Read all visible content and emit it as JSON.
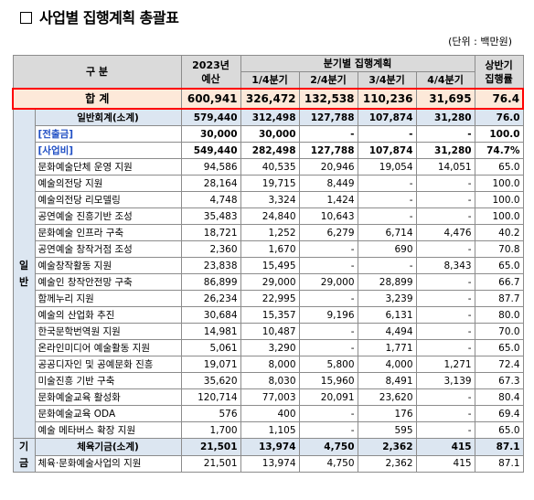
{
  "title": "사업별 집행계획 총괄표",
  "unit": "(단위 : 백만원)",
  "header": {
    "division": "구 분",
    "budget_line1": "2023년",
    "budget_line2": "예산",
    "quarter_group": "분기별 집행계획",
    "q1": "1/4분기",
    "q2": "2/4분기",
    "q3": "3/4분기",
    "q4": "4/4분기",
    "rate_line1": "상반기",
    "rate_line2": "집행률"
  },
  "total": {
    "label": "합    계",
    "values": [
      "600,941",
      "326,472",
      "132,538",
      "110,236",
      "31,695",
      "76.4"
    ]
  },
  "general": {
    "side_label_1": "일",
    "side_label_2": "반",
    "subtotal": {
      "label": "일반회계(소계)",
      "values": [
        "579,440",
        "312,498",
        "127,788",
        "107,874",
        "31,280",
        "76.0"
      ]
    },
    "transfer": {
      "label": "[전출금]",
      "values": [
        "30,000",
        "30,000",
        "-",
        "-",
        "-",
        "100.0"
      ]
    },
    "business": {
      "label": "[사업비]",
      "values": [
        "549,440",
        "282,498",
        "127,788",
        "107,874",
        "31,280",
        "74.7%"
      ]
    },
    "rows": [
      {
        "label": "문화예술단체 운영 지원",
        "values": [
          "94,586",
          "40,535",
          "20,946",
          "19,054",
          "14,051",
          "65.0"
        ]
      },
      {
        "label": "예술의전당 지원",
        "values": [
          "28,164",
          "19,715",
          "8,449",
          "-",
          "-",
          "100.0"
        ]
      },
      {
        "label": "예술의전당 리모델링",
        "values": [
          "4,748",
          "3,324",
          "1,424",
          "-",
          "-",
          "100.0"
        ]
      },
      {
        "label": "공연예술 진흥기반 조성",
        "values": [
          "35,483",
          "24,840",
          "10,643",
          "-",
          "-",
          "100.0"
        ]
      },
      {
        "label": "문화예술 인프라 구축",
        "values": [
          "18,721",
          "1,252",
          "6,279",
          "6,714",
          "4,476",
          "40.2"
        ]
      },
      {
        "label": "공연예술 창작거점 조성",
        "values": [
          "2,360",
          "1,670",
          "-",
          "690",
          "-",
          "70.8"
        ]
      },
      {
        "label": "예술창작활동 지원",
        "values": [
          "23,838",
          "15,495",
          "-",
          "-",
          "8,343",
          "65.0"
        ]
      },
      {
        "label": "예술인 창작안전망 구축",
        "values": [
          "86,899",
          "29,000",
          "29,000",
          "28,899",
          "-",
          "66.7"
        ]
      },
      {
        "label": "함께누리 지원",
        "values": [
          "26,234",
          "22,995",
          "-",
          "3,239",
          "-",
          "87.7"
        ]
      },
      {
        "label": "예술의 산업화 추진",
        "values": [
          "30,684",
          "15,357",
          "9,196",
          "6,131",
          "-",
          "80.0"
        ]
      },
      {
        "label": "한국문학번역원 지원",
        "values": [
          "14,981",
          "10,487",
          "-",
          "4,494",
          "-",
          "70.0"
        ]
      },
      {
        "label": "온라인미디어 예술활동 지원",
        "values": [
          "5,061",
          "3,290",
          "-",
          "1,771",
          "-",
          "65.0"
        ]
      },
      {
        "label": "공공디자인 및 공예문화 진흥",
        "values": [
          "19,071",
          "8,000",
          "5,800",
          "4,000",
          "1,271",
          "72.4"
        ]
      },
      {
        "label": "미술진흥 기반 구축",
        "values": [
          "35,620",
          "8,030",
          "15,960",
          "8,491",
          "3,139",
          "67.3"
        ]
      },
      {
        "label": "문화예술교육 활성화",
        "values": [
          "120,714",
          "77,003",
          "20,091",
          "23,620",
          "-",
          "80.4"
        ]
      },
      {
        "label": "문화예술교육 ODA",
        "values": [
          "576",
          "400",
          "-",
          "176",
          "-",
          "69.4"
        ]
      },
      {
        "label": "예술 메타버스 확장 지원",
        "values": [
          "1,700",
          "1,105",
          "-",
          "595",
          "-",
          "65.0"
        ]
      }
    ]
  },
  "fund": {
    "side_label_1": "기",
    "side_label_2": "금",
    "subtotal": {
      "label": "체육기금(소계)",
      "values": [
        "21,501",
        "13,974",
        "4,750",
        "2,362",
        "415",
        "87.1"
      ]
    },
    "rows": [
      {
        "label": "체육·문화예술사업의 지원",
        "values": [
          "21,501",
          "13,974",
          "4,750",
          "2,362",
          "415",
          "87.1"
        ]
      }
    ]
  }
}
